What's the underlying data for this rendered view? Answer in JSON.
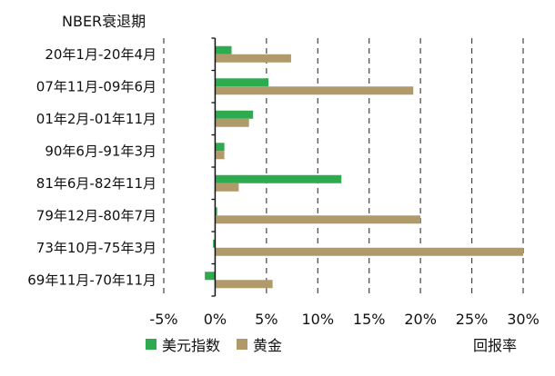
{
  "chart_data": {
    "type": "bar",
    "orientation": "horizontal",
    "category_header": "NBER衰退期",
    "categories": [
      "20年1月-20年4月",
      "07年11月-09年6月",
      "01年2月-01年11月",
      "90年6月-91年3月",
      "81年6月-82年11月",
      "79年12月-80年7月",
      "73年10月-75年3月",
      "69年11月-70年11月"
    ],
    "series": [
      {
        "name": "美元指数",
        "color": "#2eaa4f",
        "values": [
          1.6,
          5.2,
          3.7,
          0.9,
          12.3,
          0.2,
          -0.2,
          -1.0
        ]
      },
      {
        "name": "黄金",
        "color": "#b19a6a",
        "values": [
          7.4,
          19.3,
          3.3,
          0.9,
          2.3,
          20.0,
          30.0,
          5.6
        ]
      }
    ],
    "xlim": [
      -5,
      30
    ],
    "xticks": [
      -5,
      0,
      5,
      10,
      15,
      20,
      25,
      30
    ],
    "xtick_labels": [
      "-5%",
      "0%",
      "5%",
      "10%",
      "15%",
      "20%",
      "25%",
      "30%"
    ],
    "xlabel": "回报率",
    "grid": "vertical-dashed",
    "legend_position": "bottom-left"
  }
}
